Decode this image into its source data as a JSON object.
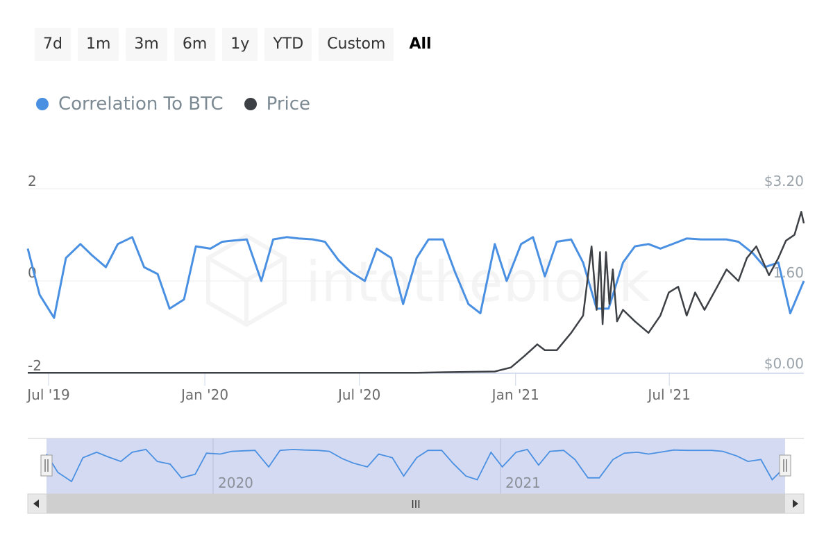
{
  "range_buttons": [
    {
      "label": "7d",
      "active": false
    },
    {
      "label": "1m",
      "active": false
    },
    {
      "label": "3m",
      "active": false
    },
    {
      "label": "6m",
      "active": false
    },
    {
      "label": "1y",
      "active": false
    },
    {
      "label": "YTD",
      "active": false
    },
    {
      "label": "Custom",
      "active": false
    },
    {
      "label": "All",
      "active": true
    }
  ],
  "legend": [
    {
      "label": "Correlation To BTC",
      "color": "#4a90e2"
    },
    {
      "label": "Price",
      "color": "#3d4145"
    }
  ],
  "watermark": "intotheblock",
  "navigator": {
    "year_labels": [
      "2020",
      "2021"
    ],
    "scroll_grip": "III"
  },
  "chart_data": {
    "type": "line",
    "x_ticks": [
      "Jul '19",
      "Jan '20",
      "Jul '20",
      "Jan '21",
      "Jul '21"
    ],
    "left_axis": {
      "ticks": [
        "2",
        "0",
        "-2"
      ],
      "ylim": [
        -2,
        2
      ]
    },
    "right_axis": {
      "ticks": [
        "$3.20",
        "1.60",
        "$0.00"
      ],
      "ylim": [
        0,
        3.2
      ]
    },
    "xlim": [
      "2019-07-01",
      "2021-12-31"
    ],
    "grid": "horizontal",
    "series": [
      {
        "name": "Correlation To BTC",
        "axis": "left",
        "color": "#4a90e2",
        "x": [
          "2019-07-01",
          "2019-07-15",
          "2019-08-01",
          "2019-08-15",
          "2019-09-01",
          "2019-09-15",
          "2019-10-01",
          "2019-10-15",
          "2019-11-01",
          "2019-11-15",
          "2019-12-01",
          "2019-12-15",
          "2020-01-01",
          "2020-01-15",
          "2020-02-01",
          "2020-02-15",
          "2020-03-01",
          "2020-03-15",
          "2020-04-01",
          "2020-04-15",
          "2020-05-01",
          "2020-05-15",
          "2020-06-01",
          "2020-06-15",
          "2020-07-01",
          "2020-07-15",
          "2020-08-01",
          "2020-08-15",
          "2020-09-01",
          "2020-09-15",
          "2020-10-01",
          "2020-10-15",
          "2020-11-01",
          "2020-11-15",
          "2020-12-01",
          "2020-12-15",
          "2021-01-01",
          "2021-01-15",
          "2021-02-01",
          "2021-02-15",
          "2021-03-01",
          "2021-03-15",
          "2021-04-01",
          "2021-04-15",
          "2021-05-01",
          "2021-05-15",
          "2021-06-01",
          "2021-06-15",
          "2021-07-01",
          "2021-07-15",
          "2021-08-01",
          "2021-08-15",
          "2021-09-01",
          "2021-09-15",
          "2021-10-01",
          "2021-10-15",
          "2021-11-01",
          "2021-11-15",
          "2021-12-01",
          "2021-12-15",
          "2021-12-31"
        ],
        "y": [
          0.7,
          -0.3,
          -0.8,
          0.5,
          0.8,
          0.55,
          0.3,
          0.8,
          0.95,
          0.3,
          0.15,
          -0.6,
          -0.4,
          0.75,
          0.7,
          0.85,
          0.88,
          0.9,
          0.0,
          0.9,
          0.95,
          0.92,
          0.9,
          0.85,
          0.45,
          0.2,
          0.0,
          0.7,
          0.5,
          -0.5,
          0.5,
          0.9,
          0.9,
          0.2,
          -0.5,
          -0.7,
          0.8,
          0.0,
          0.8,
          0.95,
          0.1,
          0.85,
          0.9,
          0.4,
          -0.6,
          -0.6,
          0.4,
          0.75,
          0.8,
          0.7,
          0.82,
          0.92,
          0.9,
          0.9,
          0.9,
          0.85,
          0.6,
          0.3,
          0.4,
          -0.7,
          0.0
        ]
      },
      {
        "name": "Price",
        "axis": "right",
        "color": "#3d4145",
        "x": [
          "2019-07-01",
          "2019-10-01",
          "2020-01-01",
          "2020-04-01",
          "2020-07-01",
          "2020-10-01",
          "2021-01-01",
          "2021-01-20",
          "2021-02-05",
          "2021-02-20",
          "2021-03-01",
          "2021-03-15",
          "2021-04-01",
          "2021-04-15",
          "2021-04-25",
          "2021-05-01",
          "2021-05-05",
          "2021-05-08",
          "2021-05-12",
          "2021-05-16",
          "2021-05-20",
          "2021-05-25",
          "2021-06-01",
          "2021-06-15",
          "2021-07-01",
          "2021-07-15",
          "2021-07-25",
          "2021-08-05",
          "2021-08-15",
          "2021-08-25",
          "2021-09-05",
          "2021-09-20",
          "2021-10-01",
          "2021-10-15",
          "2021-10-25",
          "2021-11-05",
          "2021-11-20",
          "2021-12-01",
          "2021-12-10",
          "2021-12-20",
          "2021-12-28",
          "2021-12-31"
        ],
        "y": [
          0.01,
          0.01,
          0.01,
          0.01,
          0.01,
          0.01,
          0.03,
          0.1,
          0.3,
          0.5,
          0.4,
          0.4,
          0.7,
          1.0,
          2.2,
          1.1,
          2.1,
          0.85,
          2.1,
          1.2,
          1.8,
          0.9,
          1.1,
          0.9,
          0.7,
          1.0,
          1.4,
          1.5,
          1.0,
          1.4,
          1.1,
          1.5,
          1.8,
          1.6,
          2.0,
          2.2,
          1.7,
          2.0,
          2.3,
          2.4,
          2.8,
          2.6
        ]
      }
    ]
  }
}
